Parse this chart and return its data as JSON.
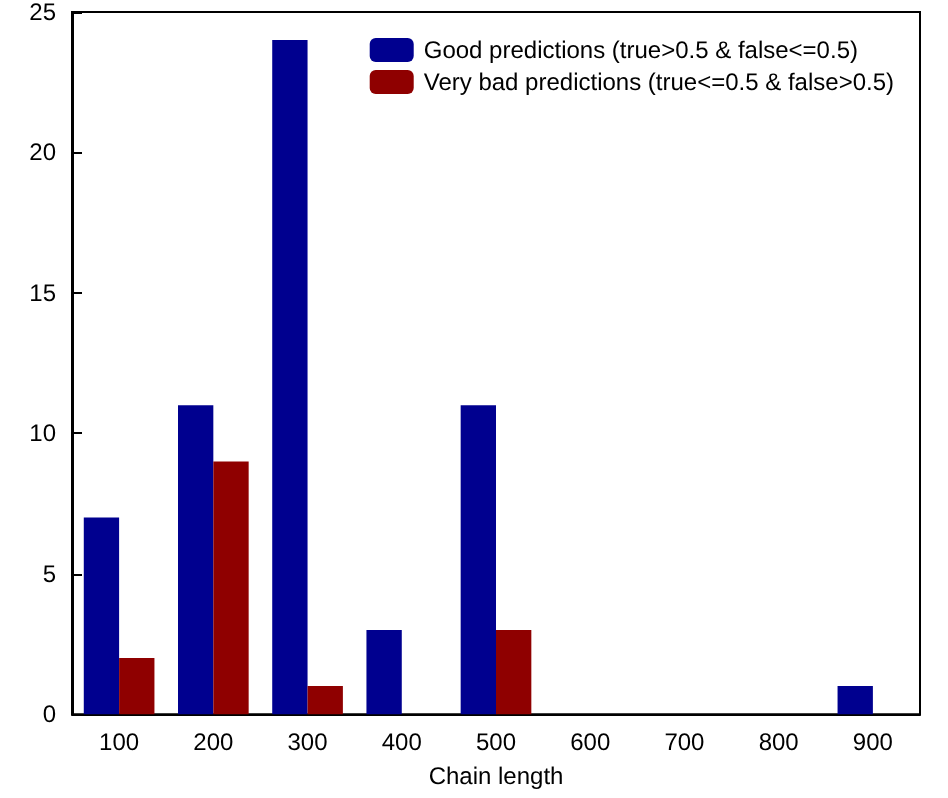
{
  "chart_data": {
    "type": "bar",
    "xlabel": "Chain length",
    "categories": [
      "100",
      "200",
      "300",
      "400",
      "500",
      "600",
      "700",
      "800",
      "900"
    ],
    "series": [
      {
        "name": "Good predictions (true>0.5 & false<=0.5)",
        "color": "#00008f",
        "values": [
          7,
          11,
          24,
          3,
          11,
          0,
          0,
          0,
          1
        ]
      },
      {
        "name": "Very bad predictions (true<=0.5 & false>0.5)",
        "color": "#8f0000",
        "values": [
          2,
          9,
          1,
          0,
          3,
          0,
          0,
          0,
          0
        ]
      }
    ],
    "ylim": [
      0,
      25
    ],
    "yticks": [
      0,
      5,
      10,
      15,
      20,
      25
    ],
    "grid": false,
    "legend": "top right"
  }
}
